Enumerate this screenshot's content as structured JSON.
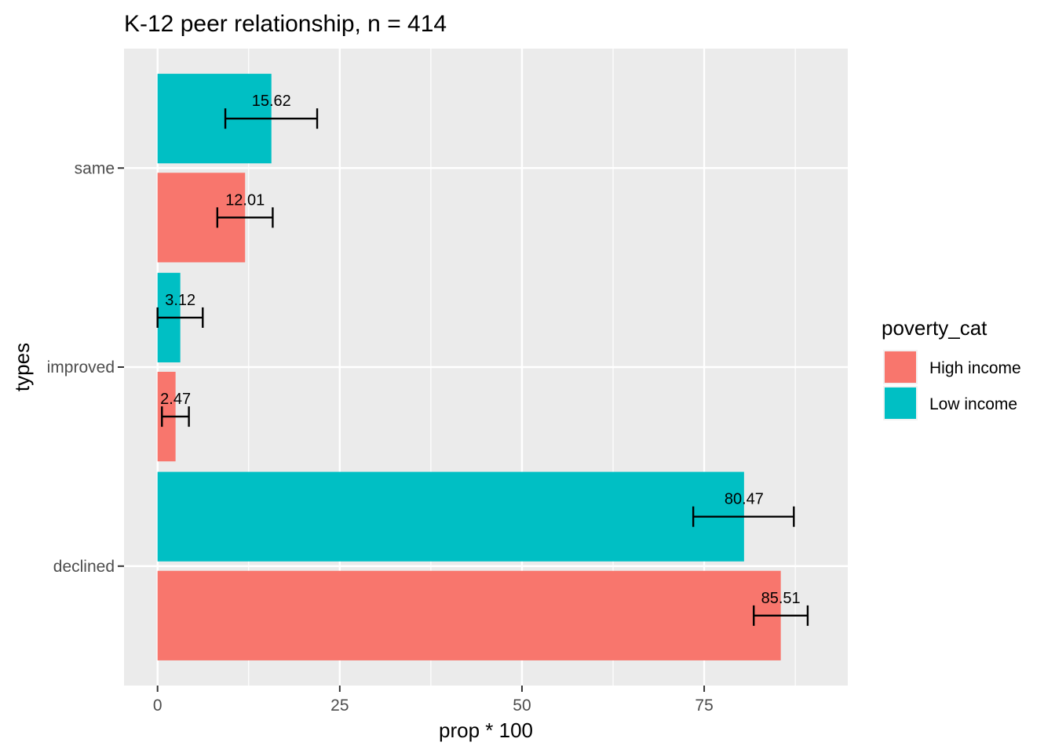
{
  "chart_data": {
    "type": "bar",
    "orientation": "horizontal",
    "title": "K-12  peer relationship, n = 414",
    "xlabel": "prop * 100",
    "ylabel": "types",
    "categories": [
      "declined",
      "improved",
      "same"
    ],
    "xlim": [
      -4.6,
      94.7
    ],
    "xticks": [
      0,
      25,
      50,
      75
    ],
    "grid": true,
    "legend": {
      "title": "poverty_cat",
      "position": "right"
    },
    "series": [
      {
        "name": "High income",
        "color": "#F8766D",
        "values": [
          85.51,
          2.47,
          12.01
        ],
        "error_low": [
          81.8,
          0.6,
          8.2
        ],
        "error_high": [
          89.2,
          4.3,
          15.8
        ],
        "labels": [
          "85.51",
          "2.47",
          "12.01"
        ]
      },
      {
        "name": "Low income",
        "color": "#00BFC4",
        "values": [
          80.47,
          3.12,
          15.62
        ],
        "error_low": [
          73.5,
          0.0,
          9.3
        ],
        "error_high": [
          87.3,
          6.2,
          21.9
        ],
        "labels": [
          "80.47",
          "3.12",
          "15.62"
        ]
      }
    ]
  }
}
